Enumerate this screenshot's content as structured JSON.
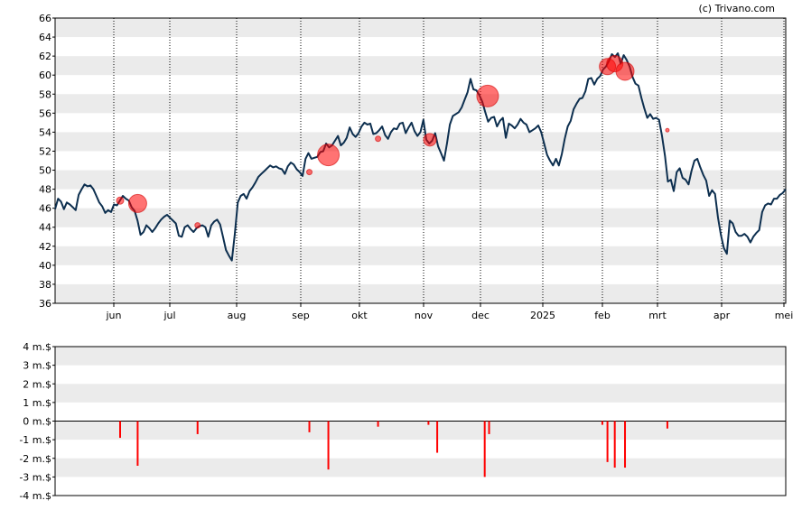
{
  "credit": "(c) Trivano.com",
  "chart_data": [
    {
      "type": "line",
      "ylim": [
        36,
        66
      ],
      "y_ticks": [
        "36",
        "38",
        "40",
        "42",
        "44",
        "46",
        "48",
        "50",
        "52",
        "54",
        "56",
        "58",
        "60",
        "62",
        "64",
        "66"
      ],
      "x_ticks": [
        "jun",
        "jul",
        "aug",
        "sep",
        "okt",
        "nov",
        "dec",
        "2025",
        "feb",
        "mrt",
        "apr",
        "mei"
      ],
      "grid": "alternating horizontal bands, dotted vertical lines at month starts",
      "colors": {
        "line": "#0d2f4f",
        "marker": "#ff0000",
        "band": "#ebebeb"
      },
      "series": [
        {
          "values": [
            45.9,
            47.0,
            46.7,
            45.9,
            46.6,
            46.4,
            46.1,
            45.8,
            47.4,
            48.0,
            48.5,
            48.3,
            48.4,
            48.0,
            47.3,
            46.6,
            46.2,
            45.5,
            45.8,
            45.6,
            46.4,
            46.3,
            46.8,
            47.3,
            47.0,
            46.8,
            46.1,
            45.7,
            44.7,
            43.2,
            43.5,
            44.2,
            43.9,
            43.5,
            43.9,
            44.4,
            44.8,
            45.1,
            45.3,
            45.0,
            44.7,
            44.4,
            43.1,
            43.0,
            44.0,
            44.2,
            43.8,
            43.5,
            43.9,
            44.1,
            44.2,
            44.0,
            43.0,
            44.2,
            44.6,
            44.8,
            44.3,
            43.0,
            41.6,
            41.0,
            40.5,
            43.3,
            46.6,
            47.3,
            47.5,
            47.0,
            47.8,
            48.2,
            48.7,
            49.3,
            49.6,
            49.9,
            50.2,
            50.5,
            50.3,
            50.4,
            50.2,
            50.1,
            49.6,
            50.4,
            50.8,
            50.6,
            50.1,
            49.8,
            49.4,
            51.2,
            51.8,
            51.2,
            51.3,
            51.4,
            51.9,
            52.0,
            52.8,
            52.4,
            52.6,
            53.1,
            53.6,
            52.6,
            52.9,
            53.4,
            54.5,
            53.8,
            53.5,
            53.9,
            54.6,
            55.0,
            54.8,
            54.9,
            53.8,
            53.9,
            54.2,
            54.6,
            53.7,
            53.3,
            54.0,
            54.4,
            54.3,
            54.9,
            55.0,
            53.9,
            54.5,
            55.0,
            54.1,
            53.6,
            54.0,
            55.3,
            53.2,
            52.8,
            53.1,
            53.9,
            52.5,
            51.8,
            51.0,
            52.8,
            54.8,
            55.7,
            55.9,
            56.1,
            56.6,
            57.4,
            58.2,
            59.6,
            58.5,
            58.4,
            57.9,
            57.2,
            56.1,
            55.1,
            55.5,
            55.6,
            54.6,
            55.2,
            55.5,
            53.4,
            54.9,
            54.7,
            54.4,
            54.8,
            55.4,
            55.0,
            54.8,
            54.0,
            54.2,
            54.4,
            54.7,
            54.0,
            52.8,
            51.6,
            51.0,
            50.5,
            51.2,
            50.5,
            51.7,
            53.3,
            54.6,
            55.2,
            56.4,
            57.0,
            57.5,
            57.6,
            58.3,
            59.6,
            59.7,
            59.0,
            59.6,
            59.9,
            60.6,
            60.9,
            61.5,
            62.2,
            61.9,
            62.3,
            61.2,
            62.1,
            61.6,
            60.9,
            59.8,
            59.1,
            58.9,
            57.6,
            56.5,
            55.5,
            55.9,
            55.4,
            55.5,
            55.3,
            53.6,
            51.5,
            48.8,
            49.0,
            47.8,
            49.8,
            50.2,
            49.2,
            49.0,
            48.5,
            49.9,
            51.0,
            51.2,
            50.3,
            49.5,
            48.9,
            47.3,
            47.9,
            47.5,
            45.0,
            43.2,
            41.8,
            41.2,
            44.7,
            44.4,
            43.5,
            43.1,
            43.1,
            43.3,
            43.0,
            42.4,
            43.0,
            43.4,
            43.7,
            45.6,
            46.3,
            46.5,
            46.4,
            47.0,
            47.0,
            47.4,
            47.6,
            48.0
          ]
        }
      ],
      "markers": [
        {
          "x": 0.089,
          "y": 46.8,
          "size": 4
        },
        {
          "x": 0.113,
          "y": 46.5,
          "size": 10
        },
        {
          "x": 0.195,
          "y": 44.2,
          "size": 3
        },
        {
          "x": 0.348,
          "y": 49.8,
          "size": 3
        },
        {
          "x": 0.374,
          "y": 51.6,
          "size": 12
        },
        {
          "x": 0.442,
          "y": 53.3,
          "size": 3
        },
        {
          "x": 0.513,
          "y": 53.2,
          "size": 7
        },
        {
          "x": 0.592,
          "y": 57.8,
          "size": 12
        },
        {
          "x": 0.756,
          "y": 60.9,
          "size": 9
        },
        {
          "x": 0.766,
          "y": 61.2,
          "size": 9
        },
        {
          "x": 0.78,
          "y": 60.4,
          "size": 10
        },
        {
          "x": 0.838,
          "y": 54.2,
          "size": 2
        }
      ]
    },
    {
      "type": "bar",
      "ylim": [
        -4,
        4
      ],
      "y_ticks": [
        "4 m.$",
        "3 m.$",
        "2 m.$",
        "1 m.$",
        "0 m.$",
        "-1 m.$",
        "-2 m.$",
        "-3 m.$",
        "-4 m.$"
      ],
      "colors": {
        "bar": "#ff0000",
        "zero_line": "#000000",
        "band": "#ebebeb"
      },
      "bars": [
        {
          "x": 0.089,
          "value": -0.9
        },
        {
          "x": 0.113,
          "value": -2.4
        },
        {
          "x": 0.195,
          "value": -0.7
        },
        {
          "x": 0.348,
          "value": -0.6
        },
        {
          "x": 0.374,
          "value": -2.6
        },
        {
          "x": 0.442,
          "value": -0.3
        },
        {
          "x": 0.511,
          "value": -0.2
        },
        {
          "x": 0.523,
          "value": -1.7
        },
        {
          "x": 0.588,
          "value": -3.0
        },
        {
          "x": 0.594,
          "value": -0.7
        },
        {
          "x": 0.749,
          "value": -0.2
        },
        {
          "x": 0.756,
          "value": -2.2
        },
        {
          "x": 0.766,
          "value": -2.5
        },
        {
          "x": 0.78,
          "value": -2.5
        },
        {
          "x": 0.838,
          "value": -0.4
        }
      ]
    }
  ]
}
